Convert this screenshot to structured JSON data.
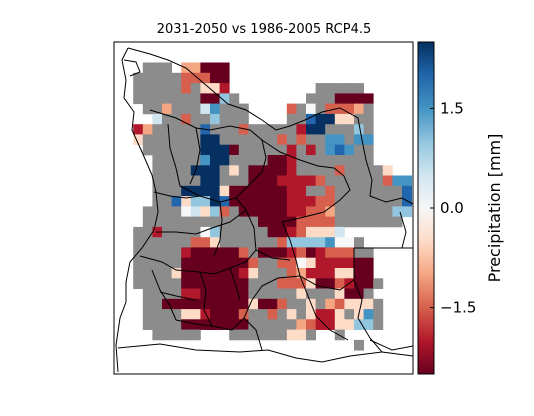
{
  "title": "2031-2050 vs 1986-2005 RCP4.5",
  "colorbar": {
    "label": "Precipitation [mm]",
    "ticks": [
      {
        "value": 1.5,
        "label": "1.5"
      },
      {
        "value": 0.0,
        "label": "0.0"
      },
      {
        "value": -1.5,
        "label": "−1.5"
      }
    ],
    "range": [
      -2.5,
      2.5
    ],
    "colormap": "RdBu",
    "stops": [
      "#67001f",
      "#b2182b",
      "#d6604d",
      "#f4a582",
      "#fddbc7",
      "#f7f7f7",
      "#d1e5f0",
      "#92c5de",
      "#4393c3",
      "#2166ac",
      "#053061"
    ]
  },
  "nodata_color": "#8c8c8c",
  "map": {
    "region": "Angola",
    "colormap_units": "mm"
  }
}
